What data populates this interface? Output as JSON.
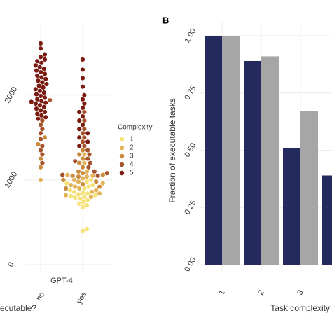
{
  "chart_data": [
    {
      "type": "swarm",
      "categories": [
        "no",
        "yes"
      ],
      "xlabel": "ecutable?",
      "strip": "GPT-4",
      "legend_title": "Complexity",
      "ylim": [
        0,
        2700
      ],
      "yticks": [
        0,
        1000,
        2000
      ],
      "grid": true,
      "series": [
        {
          "name": "1",
          "color": "#f7e27a",
          "values": [
            [],
            [
              1000,
              980,
              960,
              940,
              920,
              900,
              880,
              860,
              850,
              840,
              830,
              820,
              810,
              800,
              790,
              780,
              760,
              740,
              720,
              700,
              680,
              420,
              400
            ]
          ]
        },
        {
          "name": "2",
          "color": "#e2b35b",
          "values": [
            [
              1000
            ],
            [
              1300,
              1200,
              1100,
              1060,
              1050,
              1040,
              1020,
              1000,
              980,
              960,
              940,
              920,
              900,
              880,
              860,
              840,
              820,
              800
            ]
          ]
        },
        {
          "name": "3",
          "color": "#c98a3e",
          "values": [
            [
              1500,
              1420,
              1250,
              1150
            ],
            [
              1350,
              1300,
              1250,
              1200,
              1150,
              1100,
              1080,
              1060,
              1050,
              1040,
              1000,
              980,
              950,
              920,
              900
            ]
          ]
        },
        {
          "name": "4",
          "color": "#a5532a",
          "values": [
            [
              1940,
              1700,
              1650,
              1600,
              1550,
              1480,
              1400,
              1350,
              1300,
              1200
            ],
            [
              1800,
              1700,
              1600,
              1550,
              1500,
              1450,
              1400,
              1350,
              1300,
              1250,
              1220,
              1200,
              1150,
              1100,
              1080,
              1060,
              1050
            ]
          ]
        },
        {
          "name": "5",
          "color": "#7b1a10",
          "values": [
            [
              2610,
              2550,
              2480,
              2450,
              2420,
              2400,
              2380,
              2350,
              2330,
              2310,
              2290,
              2270,
              2250,
              2230,
              2210,
              2190,
              2170,
              2150,
              2130,
              2110,
              2090,
              2070,
              2050,
              2030,
              2010,
              1990,
              1970,
              1950,
              1930,
              1920,
              1910,
              1900,
              1880,
              1860,
              1840,
              1820,
              1800,
              1780,
              1760,
              1740,
              1720
            ],
            [
              2420,
              2300,
              2200,
              2100,
              2000,
              1950,
              1900,
              1850,
              1800,
              1750,
              1700,
              1650,
              1600,
              1550,
              1500,
              1450,
              1400
            ]
          ]
        }
      ]
    },
    {
      "type": "bar",
      "panel": "B",
      "ylabel": "Fraction of executable tasks",
      "xlabel": "Task complexity",
      "categories": [
        "1",
        "2",
        "3",
        null
      ],
      "ylim": [
        0,
        1.0
      ],
      "yticks": [
        {
          "value": 0,
          "label": "0.00"
        },
        {
          "value": 0.25,
          "label": "0.25"
        },
        {
          "value": 0.5,
          "label": "0.50"
        },
        {
          "value": 0.75,
          "label": "0.75"
        },
        {
          "value": 1.0,
          "label": "1.00"
        }
      ],
      "grid": true,
      "series": [
        {
          "color": "#252a5e",
          "values": [
            1.0,
            0.89,
            0.51,
            0.39
          ]
        },
        {
          "color": "#a6a6a6",
          "values": [
            1.0,
            0.91,
            0.67,
            null
          ]
        }
      ]
    }
  ]
}
